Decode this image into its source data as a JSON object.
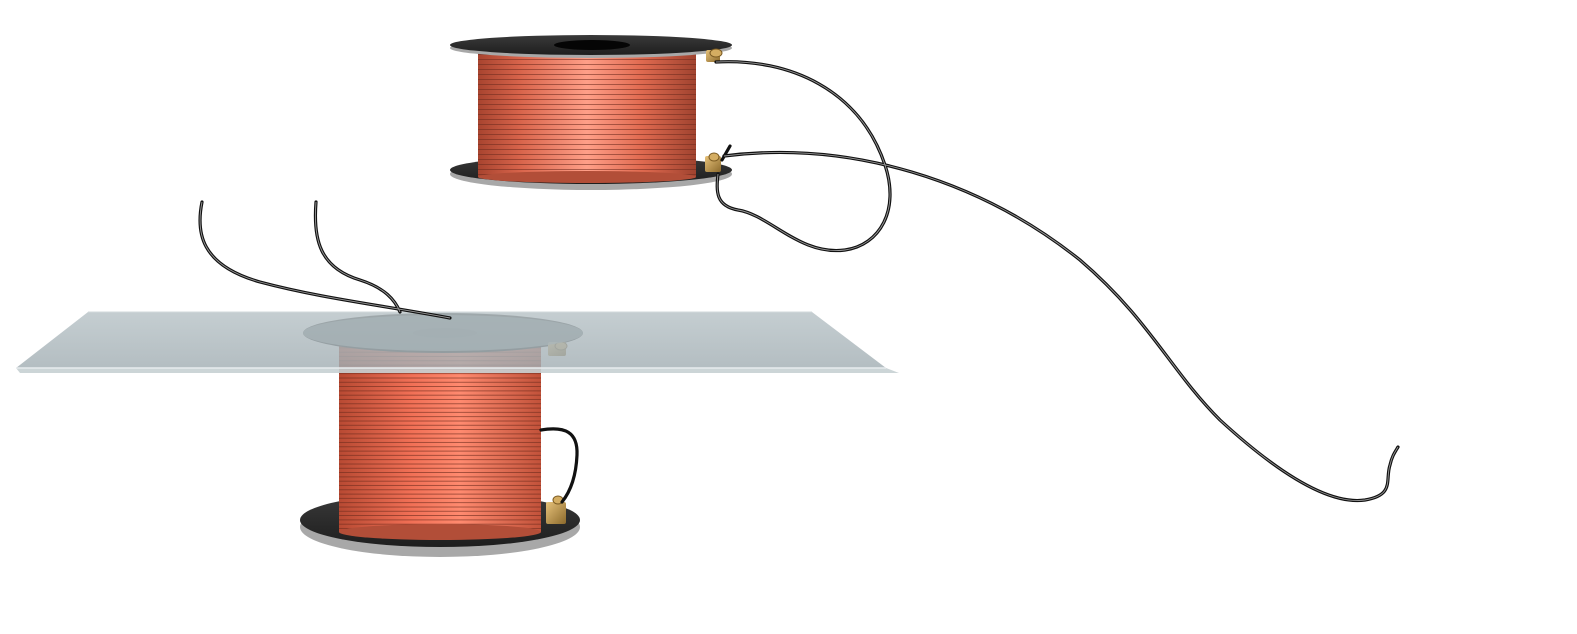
{
  "scene": {
    "background": "#ffffff",
    "colors": {
      "copper_light": "#ff9f88",
      "copper_mid": "#e2674e",
      "copper_dark": "#8f3a28",
      "winding_line": "#7a2f20",
      "flange_dark": "#2b2b2b",
      "flange_rim": "#a8a8a8",
      "brass": "#c9a15a",
      "wire": "#111111",
      "glass": "#a9b6bb"
    },
    "objects": [
      {
        "name": "top-coil",
        "kind": "wire-spool",
        "icon": "coil-icon"
      },
      {
        "name": "bottom-coil",
        "kind": "wire-spool",
        "icon": "coil-icon"
      },
      {
        "name": "glass-plate",
        "kind": "transparent-sheet",
        "icon": "glass-plate-icon"
      },
      {
        "name": "lead-wires",
        "kind": "wire",
        "count": 4,
        "icon": "wire-icon"
      },
      {
        "name": "terminal-screws",
        "kind": "brass-terminal",
        "count": 4,
        "icon": "terminal-icon"
      }
    ]
  }
}
